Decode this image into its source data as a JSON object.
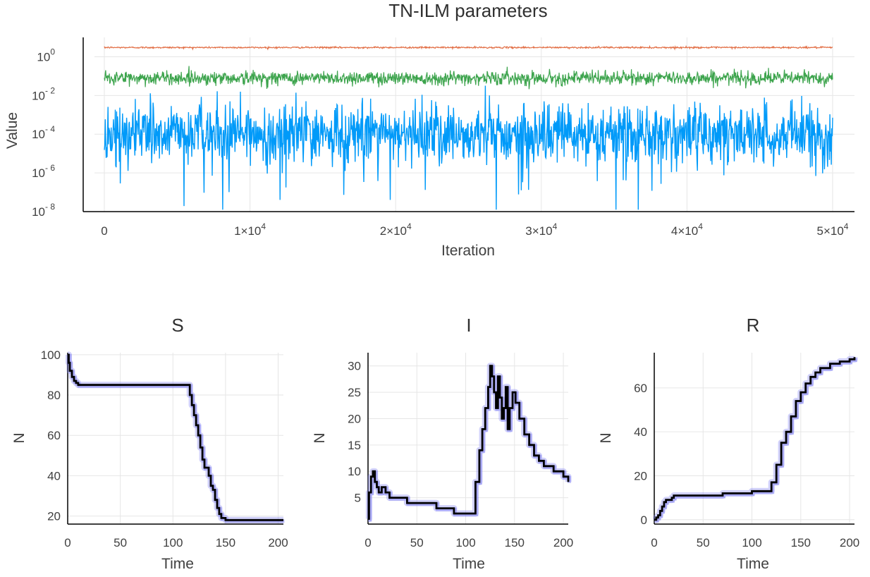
{
  "chart_data": [
    {
      "type": "line",
      "title": "TN-ILM parameters",
      "xlabel": "Iteration",
      "ylabel": "Value",
      "yscale": "log10",
      "xlim": [
        0,
        50000
      ],
      "ylim": [
        1e-08,
        10
      ],
      "grid": true,
      "legend": "none",
      "x_ticks": [
        {
          "value": 0,
          "label": "0",
          "sup": ""
        },
        {
          "value": 10000,
          "label": "1×10",
          "sup": "4"
        },
        {
          "value": 20000,
          "label": "2×10",
          "sup": "4"
        },
        {
          "value": 30000,
          "label": "3×10",
          "sup": "4"
        },
        {
          "value": 40000,
          "label": "4×10",
          "sup": "4"
        },
        {
          "value": 50000,
          "label": "5×10",
          "sup": "4"
        }
      ],
      "y_ticks": [
        {
          "value": 1,
          "label": "10",
          "sup": "0"
        },
        {
          "value": 0.01,
          "label": "10",
          "sup": "- 2"
        },
        {
          "value": 0.0001,
          "label": "10",
          "sup": "- 4"
        },
        {
          "value": 1e-06,
          "label": "10",
          "sup": "- 6"
        },
        {
          "value": 1e-08,
          "label": "10",
          "sup": "- 8"
        }
      ],
      "series": [
        {
          "color": "#e26f46",
          "center": 3.0,
          "log_spread": 0.02
        },
        {
          "color": "#3da44d",
          "center": 0.08,
          "log_spread": 0.18
        },
        {
          "color": "#009af9",
          "center": 0.0001,
          "log_spread": 1.4
        }
      ],
      "n_iterations": 50000
    },
    {
      "type": "line",
      "title": "S",
      "xlabel": "Time",
      "ylabel": "N",
      "xlim": [
        0,
        205
      ],
      "ylim": [
        16,
        101
      ],
      "grid": true,
      "x_ticks": [
        0,
        50,
        100,
        150,
        200
      ],
      "y_ticks": [
        20,
        40,
        60,
        80,
        100
      ],
      "series": [
        {
          "color": "#000000",
          "x": [
            0,
            1,
            2,
            4,
            6,
            8,
            10,
            114,
            116,
            118,
            120,
            122,
            124,
            126,
            128,
            130,
            134,
            136,
            138,
            140,
            142,
            144,
            146,
            150,
            160,
            205
          ],
          "values": [
            100,
            96,
            92,
            89,
            87,
            86,
            85,
            85,
            80,
            75,
            70,
            65,
            60,
            54,
            48,
            44,
            40,
            35,
            33,
            28,
            24,
            21,
            19,
            18,
            18,
            18
          ]
        }
      ],
      "band_color": "#7b7bf0"
    },
    {
      "type": "line",
      "title": "I",
      "xlabel": "Time",
      "ylabel": "N",
      "xlim": [
        0,
        205
      ],
      "ylim": [
        0,
        32.5
      ],
      "grid": true,
      "x_ticks": [
        0,
        50,
        100,
        150,
        200
      ],
      "y_ticks": [
        5,
        10,
        15,
        20,
        25,
        30
      ],
      "series": [
        {
          "color": "#000000",
          "x": [
            0,
            1,
            3,
            5,
            7,
            9,
            11,
            14,
            18,
            22,
            40,
            50,
            70,
            88,
            105,
            110,
            114,
            117,
            120,
            123,
            125,
            127,
            129,
            131,
            133,
            135,
            137,
            139,
            141,
            143,
            145,
            148,
            151,
            155,
            160,
            165,
            170,
            175,
            180,
            190,
            200,
            205
          ],
          "values": [
            1,
            6,
            9,
            10,
            8,
            7,
            6,
            7,
            6,
            5,
            4,
            4,
            3,
            2,
            2,
            8,
            14,
            18,
            22,
            26,
            30,
            28,
            25,
            22,
            28,
            24,
            20,
            22,
            26,
            18,
            22,
            25,
            23,
            20,
            17,
            15,
            13,
            12,
            11,
            10,
            9,
            8
          ]
        }
      ],
      "band_color": "#7b7bf0"
    },
    {
      "type": "line",
      "title": "R",
      "xlabel": "Time",
      "ylabel": "N",
      "xlim": [
        0,
        205
      ],
      "ylim": [
        -2,
        76
      ],
      "grid": true,
      "x_ticks": [
        0,
        50,
        100,
        150,
        200
      ],
      "y_ticks": [
        0,
        20,
        40,
        60
      ],
      "series": [
        {
          "color": "#000000",
          "x": [
            0,
            2,
            4,
            6,
            8,
            10,
            12,
            15,
            18,
            20,
            50,
            70,
            100,
            116,
            120,
            125,
            130,
            135,
            140,
            145,
            150,
            155,
            160,
            165,
            170,
            180,
            190,
            200,
            205
          ],
          "values": [
            0,
            1,
            2,
            4,
            6,
            8,
            9,
            9,
            10,
            11,
            11,
            12,
            13,
            13,
            17,
            25,
            35,
            40,
            47,
            54,
            58,
            62,
            65,
            67,
            69,
            71,
            72,
            73,
            74
          ]
        }
      ],
      "band_color": "#7b7bf0"
    }
  ]
}
